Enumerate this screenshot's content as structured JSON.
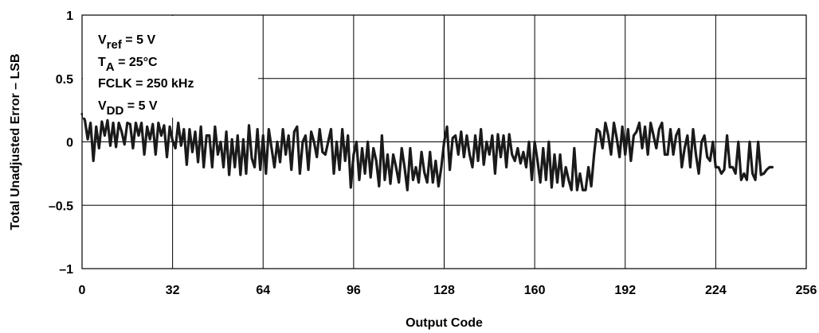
{
  "chart_data": {
    "type": "line",
    "xlabel": "Output Code",
    "ylabel": "Total Unadjusted Error – LSB",
    "xlim": [
      0,
      256
    ],
    "ylim": [
      -1,
      1
    ],
    "grid": true,
    "x_ticks": [
      0,
      32,
      64,
      96,
      128,
      160,
      192,
      224,
      256
    ],
    "y_ticks": [
      {
        "value": 1,
        "label": "1"
      },
      {
        "value": 0.5,
        "label": "0.5"
      },
      {
        "value": 0,
        "label": "0"
      },
      {
        "value": -0.5,
        "label": "–0.5"
      },
      {
        "value": -1,
        "label": "–1"
      }
    ],
    "annotations": [
      {
        "main": "V",
        "sub": "ref",
        "rest": " = 5 V"
      },
      {
        "main": "T",
        "sub": "A",
        "rest": " = 25°C"
      },
      {
        "main": "FCLK = 250 kHz",
        "sub": "",
        "rest": ""
      },
      {
        "main": "V",
        "sub": "DD",
        "rest": " = 5 V"
      }
    ],
    "series": [
      {
        "color": "#1a1a1a",
        "values": [
          0.22,
          0.17,
          0.02,
          0.15,
          -0.15,
          0.12,
          -0.05,
          0.16,
          0.05,
          0.17,
          -0.03,
          0.15,
          -0.04,
          0.15,
          0.08,
          -0.02,
          0.15,
          0.14,
          -0.05,
          0.15,
          0.05,
          0.15,
          -0.1,
          0.12,
          0.02,
          0.14,
          -0.1,
          0.15,
          0.05,
          0.13,
          -0.12,
          0.12,
          0.01,
          -0.05,
          0.15,
          -0.03,
          0.1,
          -0.18,
          0.1,
          -0.08,
          0.08,
          -0.16,
          0.12,
          -0.2,
          0.05,
          0.05,
          -0.2,
          0.12,
          -0.1,
          0.0,
          -0.2,
          0.08,
          -0.26,
          0.02,
          -0.2,
          0.05,
          -0.26,
          0.02,
          -0.25,
          0.13,
          -0.13,
          -0.2,
          0.1,
          -0.22,
          0.05,
          -0.25,
          0.1,
          -0.05,
          -0.2,
          0.0,
          -0.16,
          0.1,
          -0.1,
          0.05,
          -0.22,
          0.08,
          0.12,
          -0.25,
          0.0,
          0.05,
          -0.22,
          0.08,
          0.0,
          -0.12,
          0.1,
          -0.08,
          -0.1,
          0.0,
          0.1,
          -0.25,
          0.0,
          -0.22,
          0.1,
          -0.15,
          0.05,
          -0.36,
          -0.1,
          0.0,
          -0.3,
          -0.05,
          -0.25,
          0.0,
          -0.28,
          -0.05,
          -0.15,
          -0.35,
          0.05,
          -0.3,
          -0.1,
          -0.33,
          -0.1,
          -0.2,
          -0.32,
          -0.05,
          -0.2,
          -0.38,
          -0.05,
          -0.3,
          -0.2,
          -0.32,
          -0.08,
          -0.24,
          -0.32,
          -0.08,
          -0.32,
          -0.15,
          -0.35,
          -0.2,
          0.0,
          0.12,
          -0.22,
          0.03,
          0.05,
          -0.1,
          0.08,
          -0.12,
          0.05,
          -0.1,
          -0.2,
          0.05,
          -0.15,
          0.1,
          -0.18,
          0.0,
          -0.1,
          0.05,
          -0.25,
          0.06,
          -0.12,
          0.05,
          -0.2,
          0.06,
          -0.1,
          -0.15,
          -0.05,
          -0.17,
          -0.08,
          -0.2,
          0.0,
          -0.3,
          0.0,
          -0.15,
          -0.32,
          -0.05,
          -0.3,
          0.0,
          -0.36,
          -0.1,
          -0.32,
          -0.1,
          -0.35,
          -0.2,
          -0.3,
          -0.38,
          -0.05,
          -0.38,
          -0.25,
          -0.38,
          -0.38,
          -0.2,
          -0.35,
          -0.1,
          0.1,
          0.08,
          -0.05,
          0.15,
          0.05,
          -0.1,
          0.15,
          0.03,
          -0.12,
          0.12,
          -0.1,
          0.1,
          -0.15,
          0.05,
          0.08,
          0.15,
          -0.05,
          0.12,
          -0.1,
          0.15,
          0.05,
          -0.05,
          0.1,
          0.15,
          -0.1,
          -0.1,
          0.1,
          -0.1,
          0.05,
          0.1,
          -0.2,
          -0.05,
          0.05,
          -0.2,
          0.1,
          -0.1,
          -0.25,
          0.0,
          0.05,
          -0.12,
          -0.15,
          0.0,
          -0.2,
          -0.2,
          -0.25,
          -0.22,
          0.05,
          -0.2,
          -0.2,
          -0.25,
          0.0,
          -0.3,
          -0.25,
          -0.3,
          0.0,
          -0.25,
          -0.3,
          0.0,
          -0.26,
          -0.25,
          -0.22,
          -0.2,
          -0.2
        ]
      }
    ]
  }
}
